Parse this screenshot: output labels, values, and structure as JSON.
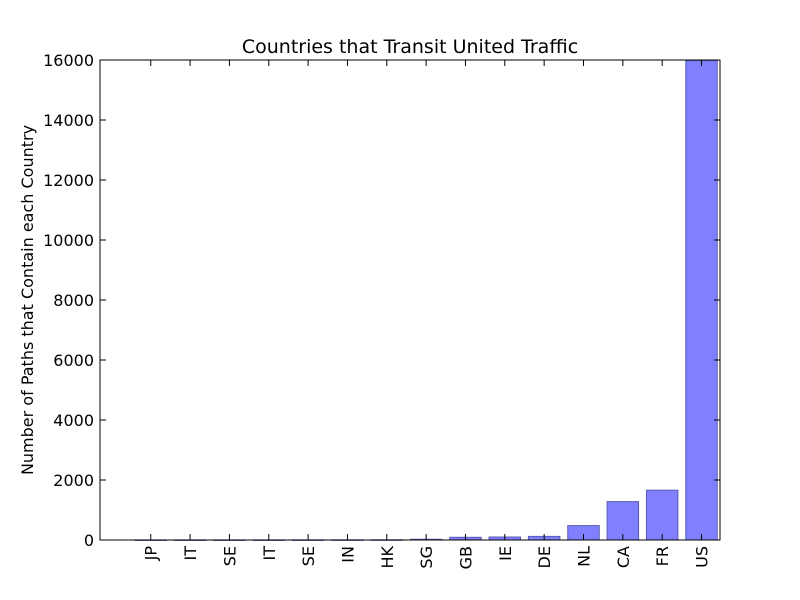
{
  "chart_data": {
    "type": "bar",
    "title": "Countries that Transit United  Traffic",
    "xlabel": "",
    "ylabel": "Number of Paths that Contain each Country",
    "categories": [
      "JP",
      "IT",
      "SE",
      "IT",
      "SE",
      "IN",
      "HK",
      "SG",
      "GB",
      "IE",
      "DE",
      "NL",
      "CA",
      "FR",
      "US"
    ],
    "values": [
      2,
      3,
      3,
      3,
      4,
      5,
      6,
      25,
      90,
      100,
      120,
      480,
      1280,
      1660,
      15980
    ],
    "ylim": [
      0,
      16000
    ],
    "yticks": [
      0,
      2000,
      4000,
      6000,
      8000,
      10000,
      12000,
      14000,
      16000
    ],
    "grid": false,
    "bar_color": "#8080ff",
    "bar_edge_color": "#5a5ab4"
  }
}
